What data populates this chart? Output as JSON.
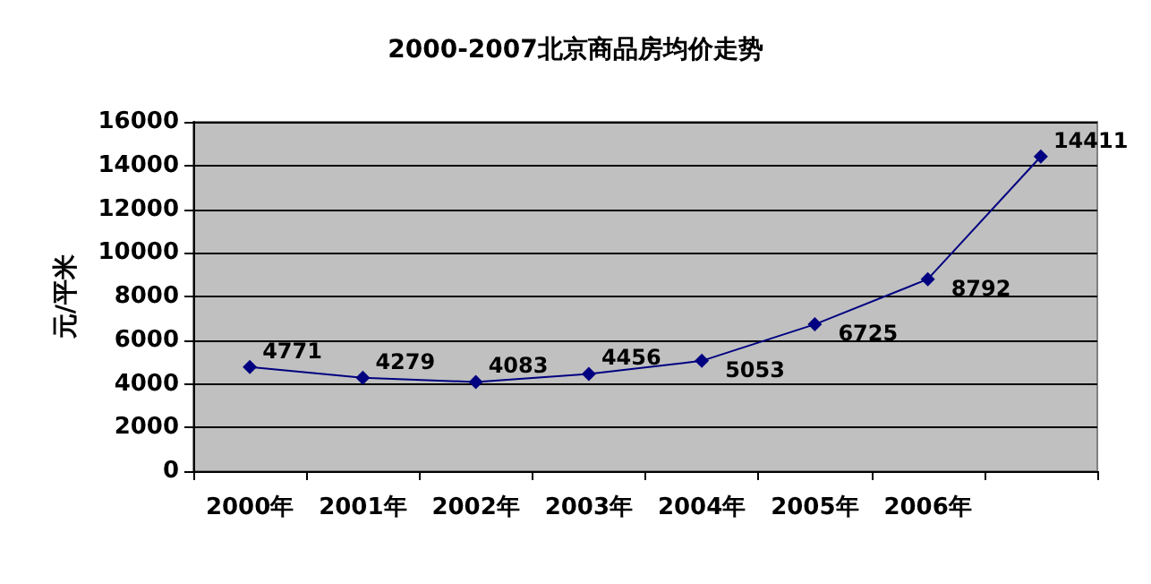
{
  "chart_data": {
    "type": "line",
    "title": "2000-2007北京商品房均价走势",
    "ylabel": "元/平米",
    "categories": [
      "2000年",
      "2001年",
      "2002年",
      "2003年",
      "2004年",
      "2005年",
      "2006年",
      null
    ],
    "series": [
      {
        "color": "#000080",
        "values": [
          4771,
          4279,
          4083,
          4456,
          5053,
          6725,
          8792,
          14411
        ]
      }
    ],
    "ylim": [
      0,
      16000
    ],
    "yticks": [
      0,
      2000,
      4000,
      6000,
      8000,
      10000,
      12000,
      14000,
      16000
    ],
    "grid": "y",
    "marker": "diamond",
    "data_labels": true
  }
}
